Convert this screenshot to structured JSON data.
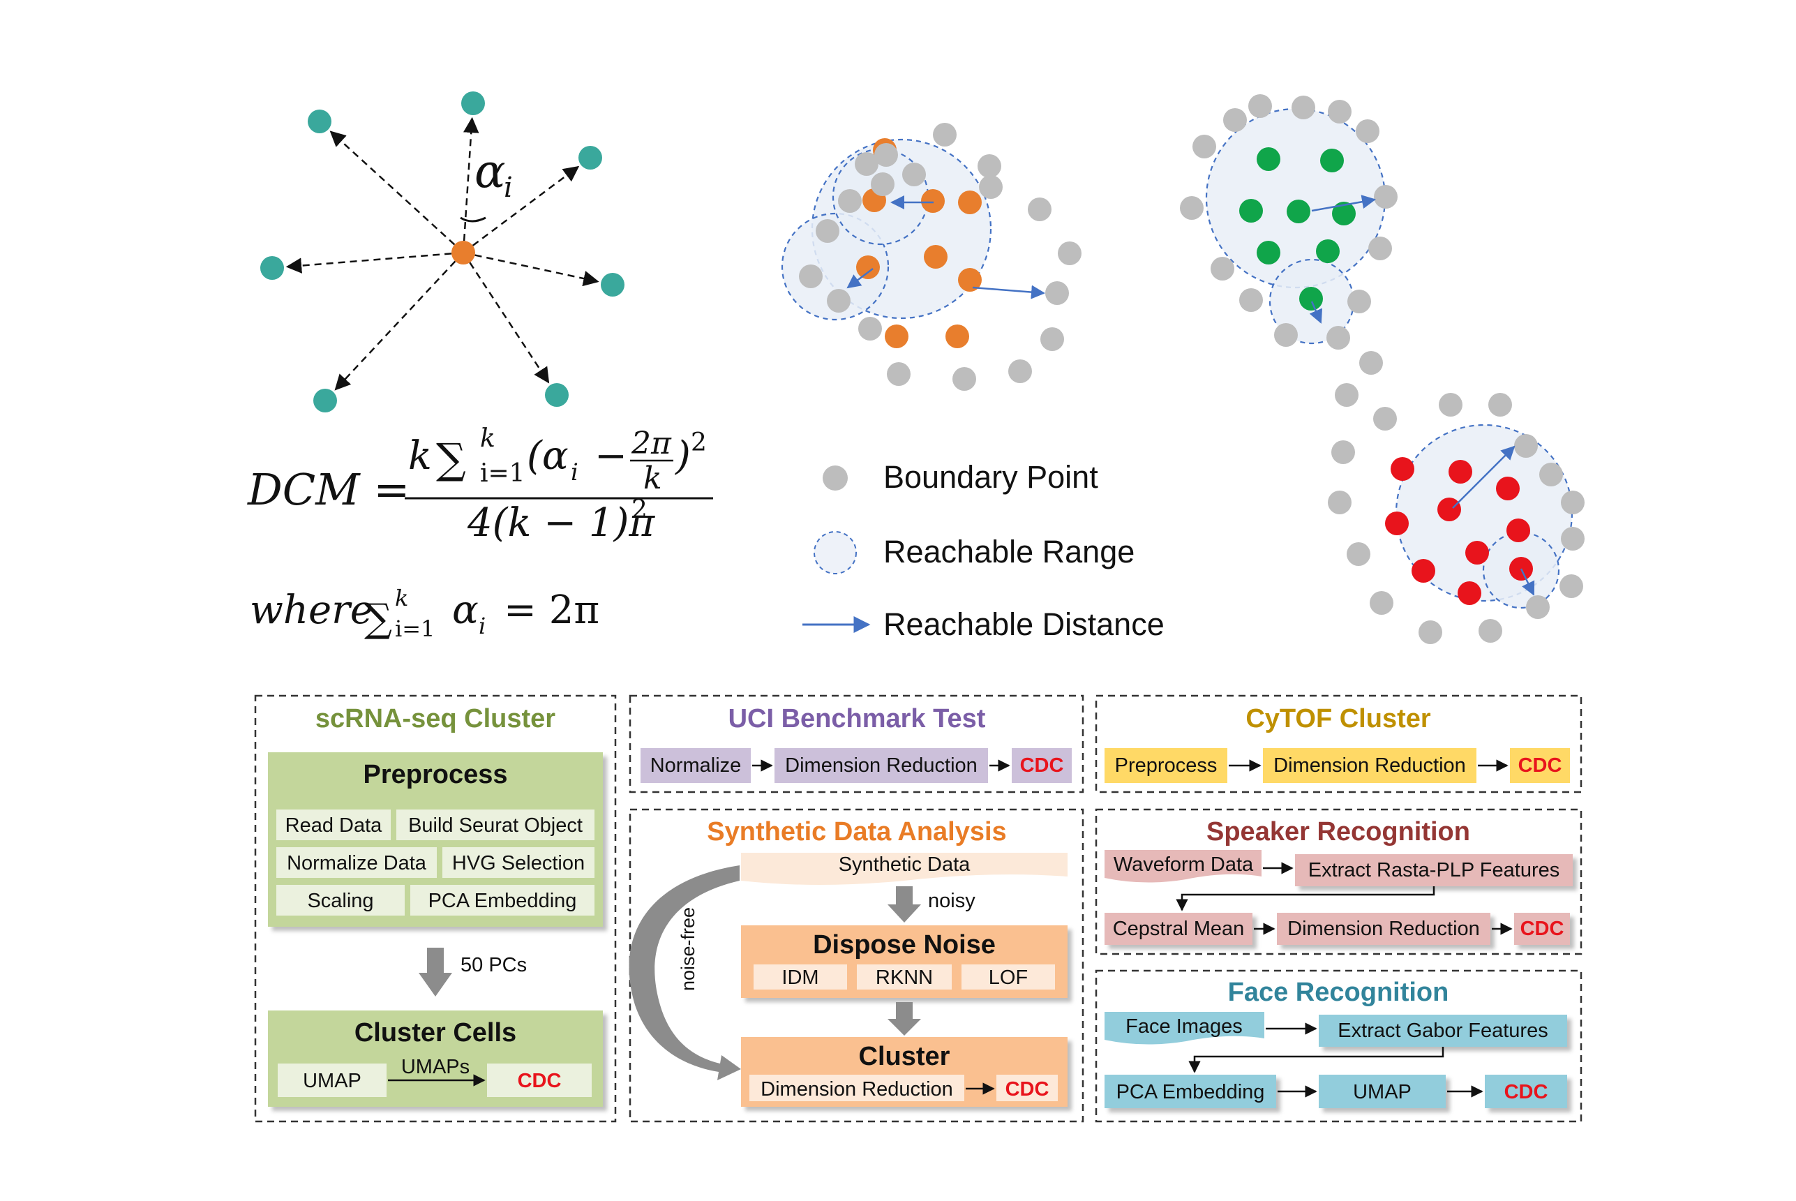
{
  "top": {
    "alpha_label": "α",
    "alpha_sub": "i",
    "formula": {
      "lhs": "DCM =",
      "num_k": "k",
      "num_sum": "∑",
      "num_sum_sup": "k",
      "num_sum_sub": "i=1",
      "num_term": "(α",
      "num_term_sub": "i",
      "num_minus": "−",
      "num_frac_num": "2π",
      "num_frac_den": "k",
      "num_close": ")",
      "num_pow": "2",
      "den": "4(k − 1)π",
      "den_pow": "2",
      "where": "where",
      "where_sum": "∑",
      "where_sup": "k",
      "where_sub": "i=1",
      "where_alpha": "α",
      "where_alpha_sub": "i",
      "where_rhs": "= 2π"
    },
    "legend": {
      "boundary": "Boundary Point",
      "range": "Reachable Range",
      "distance": "Reachable Distance"
    }
  },
  "panels": {
    "scrna": {
      "title": "scRNA-seq Cluster",
      "preprocess": "Preprocess",
      "items": [
        "Read Data",
        "Build Seurat Object",
        "Normalize Data",
        "HVG Selection",
        "Scaling",
        "PCA Embedding"
      ],
      "arrow_label": "50 PCs",
      "cluster_cells": "Cluster Cells",
      "umap": "UMAP",
      "umaps": "UMAPs",
      "cdc": "CDC"
    },
    "uci": {
      "title": "UCI Benchmark Test",
      "normalize": "Normalize",
      "dimred": "Dimension Reduction",
      "cdc": "CDC"
    },
    "synthetic": {
      "title": "Synthetic Data Analysis",
      "data": "Synthetic Data",
      "noisy": "noisy",
      "noise_free": "noise-free",
      "dispose": "Dispose Noise",
      "methods": [
        "IDM",
        "RKNN",
        "LOF"
      ],
      "cluster": "Cluster",
      "dimred": "Dimension Reduction",
      "cdc": "CDC"
    },
    "cytof": {
      "title": "CyTOF Cluster",
      "preprocess": "Preprocess",
      "dimred": "Dimension Reduction",
      "cdc": "CDC"
    },
    "speaker": {
      "title": "Speaker Recognition",
      "waveform": "Waveform Data",
      "extract": "Extract Rasta-PLP Features",
      "cepstral": "Cepstral Mean",
      "dimred": "Dimension Reduction",
      "cdc": "CDC"
    },
    "face": {
      "title": "Face Recognition",
      "images": "Face Images",
      "extract": "Extract Gabor Features",
      "pca": "PCA Embedding",
      "umap": "UMAP",
      "cdc": "CDC"
    }
  },
  "colors": {
    "teal": "#3aa89c",
    "orange": "#e87e2d",
    "green": "#10a54a",
    "red": "#e8141c",
    "gray": "#bdbdbd",
    "blue": "#4472c4",
    "range_fill": "#e9eef7",
    "cdc_red": "#e8141c",
    "title_green": "#76923c",
    "title_purple": "#7b5ea7",
    "title_gold": "#bf9000",
    "title_orange": "#e97c26",
    "title_brown": "#943634",
    "title_teal": "#31849b"
  }
}
